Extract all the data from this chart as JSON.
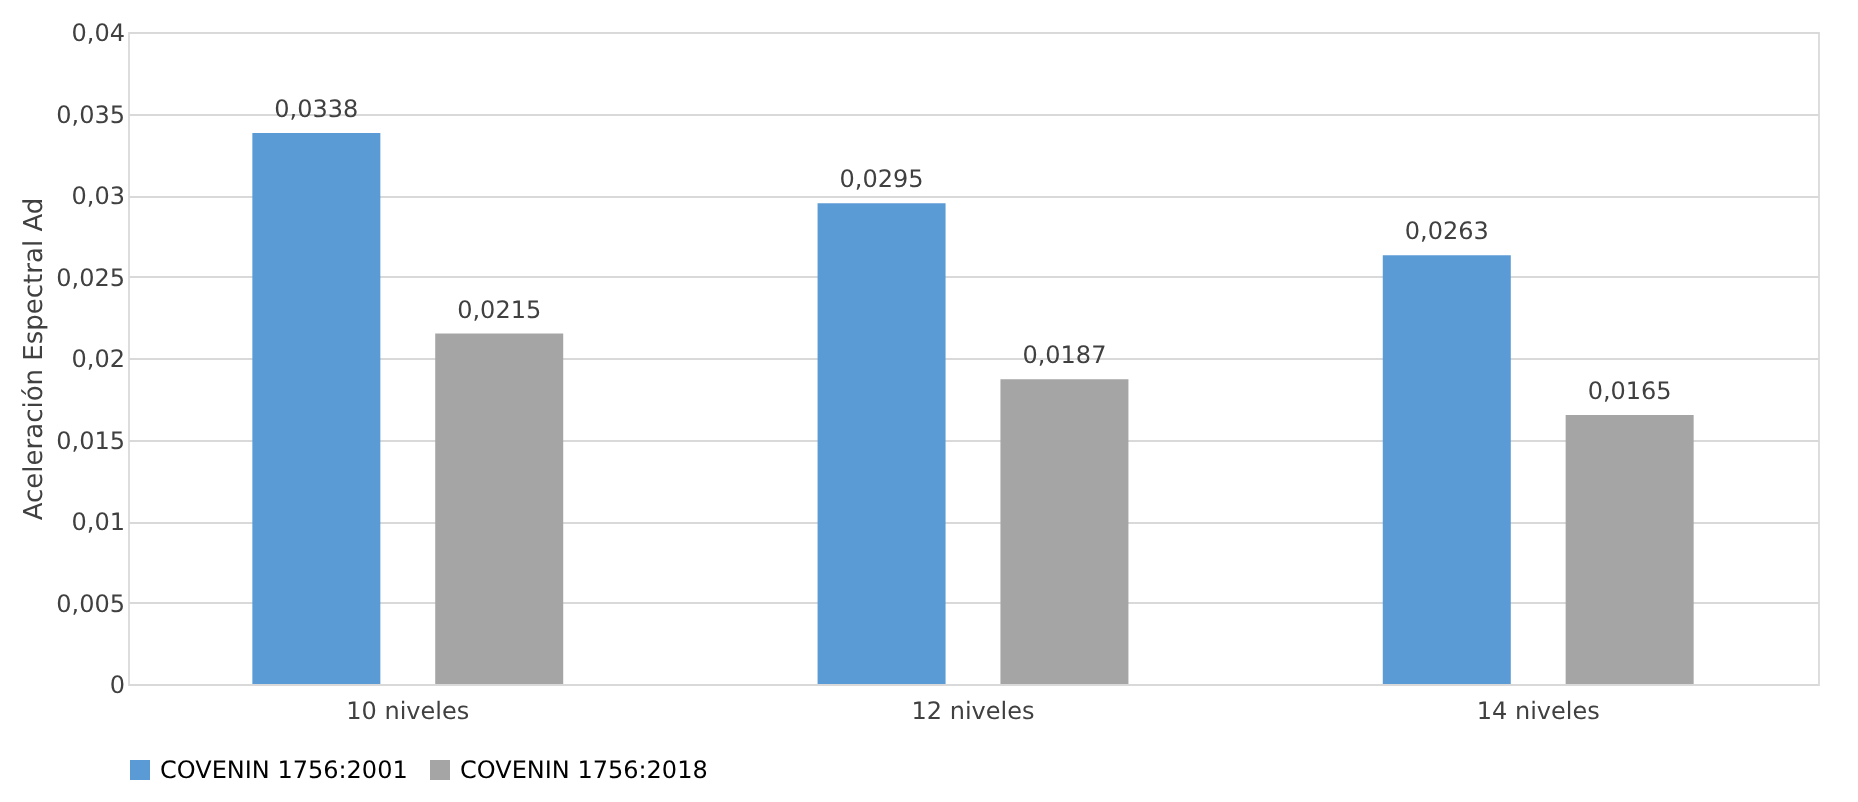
{
  "chart_data": {
    "type": "bar",
    "ylabel": "Aceleración Espectral Ad",
    "categories": [
      "10 niveles",
      "12 niveles",
      "14 niveles"
    ],
    "series": [
      {
        "name": "COVENIN 1756:2001",
        "color": "#5b9bd5",
        "values": [
          0.0338,
          0.0295,
          0.0263
        ],
        "value_labels": [
          "0,0338",
          "0,0295",
          "0,0263"
        ]
      },
      {
        "name": "COVENIN 1756:2018",
        "color": "#a5a5a5",
        "values": [
          0.0215,
          0.0187,
          0.0165
        ],
        "value_labels": [
          "0,0215",
          "0,0187",
          "0,0165"
        ]
      }
    ],
    "ylim": [
      0,
      0.04
    ],
    "yticks": [
      {
        "value": 0,
        "label": "0"
      },
      {
        "value": 0.005,
        "label": "0,005"
      },
      {
        "value": 0.01,
        "label": "0,01"
      },
      {
        "value": 0.015,
        "label": "0,015"
      },
      {
        "value": 0.02,
        "label": "0,02"
      },
      {
        "value": 0.025,
        "label": "0,025"
      },
      {
        "value": 0.03,
        "label": "0,03"
      },
      {
        "value": 0.035,
        "label": "0,035"
      },
      {
        "value": 0.04,
        "label": "0,04"
      }
    ],
    "grid": "y",
    "legend": "bottom"
  }
}
